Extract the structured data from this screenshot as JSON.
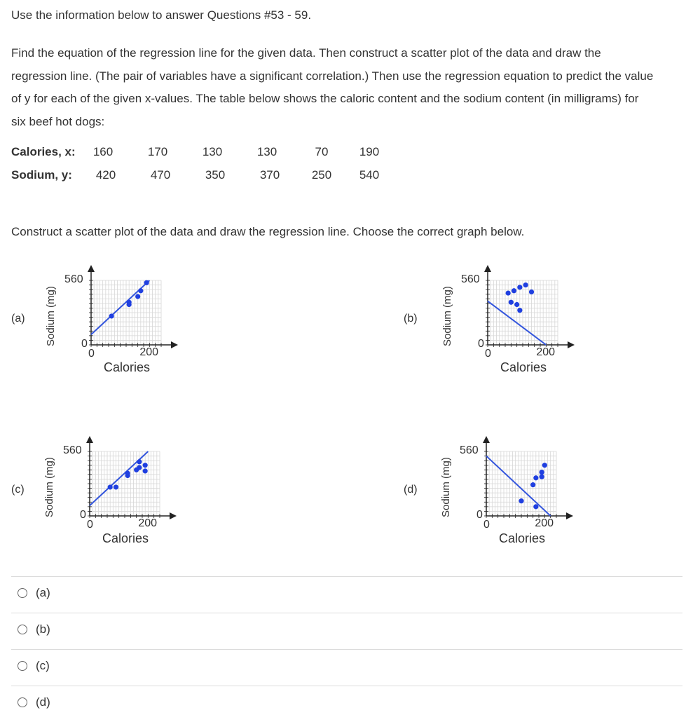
{
  "intro": "Use the information below to answer Questions #53 - 59.",
  "problem_lines": [
    "Find the equation of the regression line for the given data. Then construct a scatter plot of the data and draw the",
    "regression line. (The pair of variables have a significant correlation.) Then use the regression equation to predict the value",
    "of y for each of the given x-values. The table below shows the caloric content and the sodium content (in milligrams) for",
    "six beef hot dogs:"
  ],
  "table": {
    "x_label": "Calories, x:",
    "y_label": "Sodium, y:",
    "x_values": [
      "160",
      "170",
      "130",
      "130",
      "70",
      "190"
    ],
    "y_values": [
      "420",
      "470",
      "350",
      "370",
      "250",
      "540"
    ]
  },
  "construct_prompt": "Construct a scatter plot of the data and draw the regression line. Choose the correct graph below.",
  "graph_options": [
    {
      "label": "(a)",
      "ylabel": "Sodium (mg)",
      "xlabel": "Calories",
      "y_top": "560",
      "y_zero": "0",
      "x_zero": "0",
      "x_tick": "200"
    },
    {
      "label": "(b)",
      "ylabel": "Sodium (mg)",
      "xlabel": "Calories",
      "y_top": "560",
      "y_zero": "0",
      "x_zero": "0",
      "x_tick": "200"
    },
    {
      "label": "(c)",
      "ylabel": "Sodium (mg)",
      "xlabel": "Calories",
      "y_top": "560",
      "y_zero": "0",
      "x_zero": "0",
      "x_tick": "200"
    },
    {
      "label": "(d)",
      "ylabel": "Sodium (mg)",
      "xlabel": "Calories",
      "y_top": "560",
      "y_zero": "0",
      "x_zero": "0",
      "x_tick": "200"
    }
  ],
  "chart_data": [
    {
      "type": "scatter",
      "xlabel": "Calories",
      "ylabel": "Sodium (mg)",
      "xlim": [
        0,
        240
      ],
      "ylim": [
        0,
        560
      ],
      "points": [
        [
          70,
          250
        ],
        [
          130,
          350
        ],
        [
          130,
          370
        ],
        [
          160,
          420
        ],
        [
          170,
          470
        ],
        [
          190,
          540
        ]
      ],
      "regression_line": [
        [
          0,
          90
        ],
        [
          200,
          560
        ]
      ]
    },
    {
      "type": "scatter",
      "xlabel": "Calories",
      "ylabel": "Sodium (mg)",
      "xlim": [
        0,
        240
      ],
      "ylim": [
        0,
        560
      ],
      "points": [
        [
          70,
          450
        ],
        [
          90,
          470
        ],
        [
          110,
          500
        ],
        [
          130,
          520
        ],
        [
          150,
          460
        ],
        [
          110,
          300
        ],
        [
          100,
          350
        ],
        [
          80,
          370
        ]
      ],
      "regression_line": [
        [
          0,
          380
        ],
        [
          200,
          0
        ]
      ]
    },
    {
      "type": "scatter",
      "xlabel": "Calories",
      "ylabel": "Sodium (mg)",
      "xlim": [
        0,
        240
      ],
      "ylim": [
        0,
        560
      ],
      "points": [
        [
          70,
          250
        ],
        [
          90,
          250
        ],
        [
          130,
          350
        ],
        [
          130,
          370
        ],
        [
          160,
          400
        ],
        [
          170,
          420
        ],
        [
          170,
          470
        ],
        [
          190,
          390
        ],
        [
          190,
          440
        ]
      ],
      "regression_line": [
        [
          0,
          90
        ],
        [
          200,
          560
        ]
      ]
    },
    {
      "type": "scatter",
      "xlabel": "Calories",
      "ylabel": "Sodium (mg)",
      "xlim": [
        0,
        240
      ],
      "ylim": [
        0,
        560
      ],
      "points": [
        [
          120,
          130
        ],
        [
          160,
          270
        ],
        [
          170,
          330
        ],
        [
          190,
          380
        ],
        [
          190,
          340
        ],
        [
          200,
          440
        ],
        [
          170,
          80
        ]
      ],
      "regression_line": [
        [
          0,
          520
        ],
        [
          220,
          0
        ]
      ]
    }
  ],
  "choices": [
    "(a)",
    "(b)",
    "(c)",
    "(d)"
  ],
  "colors": {
    "point": "#1f3fe0",
    "line": "#3355dd",
    "grid": "#d6d6d6",
    "axis": "#222222"
  }
}
